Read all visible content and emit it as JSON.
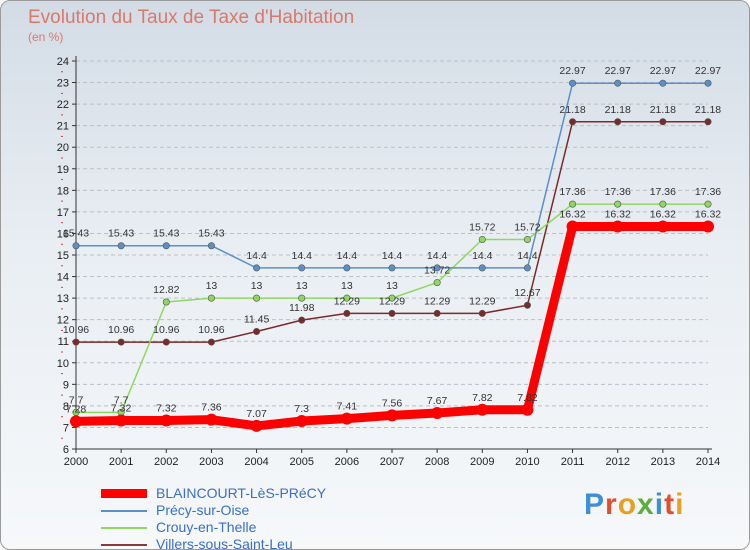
{
  "chart_data": {
    "type": "line",
    "title": "Evolution du Taux de Taxe d'Habitation",
    "ylabel": "(en %)",
    "xlabel": "",
    "x": [
      "2000",
      "2001",
      "2002",
      "2003",
      "2004",
      "2005",
      "2006",
      "2007",
      "2008",
      "2009",
      "2010",
      "2011",
      "2012",
      "2013",
      "2014"
    ],
    "ylim": [
      6,
      24
    ],
    "yticks": [
      6,
      7,
      8,
      9,
      10,
      11,
      12,
      13,
      14,
      15,
      16,
      17,
      18,
      19,
      20,
      21,
      22,
      23,
      24
    ],
    "grid": "horizontal-dashed",
    "legend_position": "bottom-left",
    "series": [
      {
        "name": "BLAINCOURT-LèS-PRéCY",
        "color": "#ff0000",
        "values": [
          7.28,
          7.32,
          7.32,
          7.36,
          7.07,
          7.3,
          7.41,
          7.56,
          7.67,
          7.82,
          7.82,
          16.32,
          16.32,
          16.32,
          16.32
        ],
        "labels": [
          "7.28",
          "7.32",
          "7.32",
          "7.36",
          "7.07",
          "7.3",
          "7.41",
          "7.56",
          "7.67",
          "7.82",
          "7.82",
          "16.32",
          "16.32",
          "16.32",
          "16.32"
        ]
      },
      {
        "name": "Précy-sur-Oise",
        "color": "#5b8fc7",
        "values": [
          15.43,
          15.43,
          15.43,
          15.43,
          14.4,
          14.4,
          14.4,
          14.4,
          14.4,
          14.4,
          14.4,
          22.97,
          22.97,
          22.97,
          22.97
        ],
        "labels": [
          "15.43",
          "15.43",
          "15.43",
          "15.43",
          "14.4",
          "14.4",
          "14.4",
          "14.4",
          "14.4",
          "14.4",
          "14.4",
          "22.97",
          "22.97",
          "22.97",
          "22.97"
        ]
      },
      {
        "name": "Crouy-en-Thelle",
        "color": "#8fd860",
        "values": [
          7.7,
          7.7,
          12.82,
          13,
          13,
          13,
          13,
          13,
          13.72,
          15.72,
          15.72,
          17.36,
          17.36,
          17.36,
          17.36
        ],
        "labels": [
          "7.7",
          "7.7",
          "12.82",
          "13",
          "13",
          "13",
          "13",
          "13",
          "13.72",
          "15.72",
          "15.72",
          "17.36",
          "17.36",
          "17.36",
          "17.36"
        ]
      },
      {
        "name": "Villers-sous-Saint-Leu",
        "color": "#7a2a2a",
        "values": [
          10.96,
          10.96,
          10.96,
          10.96,
          11.45,
          11.98,
          12.29,
          12.29,
          12.29,
          12.29,
          12.67,
          21.18,
          21.18,
          21.18,
          21.18
        ],
        "labels": [
          "10.96",
          "10.96",
          "10.96",
          "10.96",
          "11.45",
          "11.98",
          "12.29",
          "12.29",
          "12.29",
          "12.29",
          "12.67",
          "21.18",
          "21.18",
          "21.18",
          "21.18"
        ]
      }
    ],
    "brand": "Proxiti"
  }
}
